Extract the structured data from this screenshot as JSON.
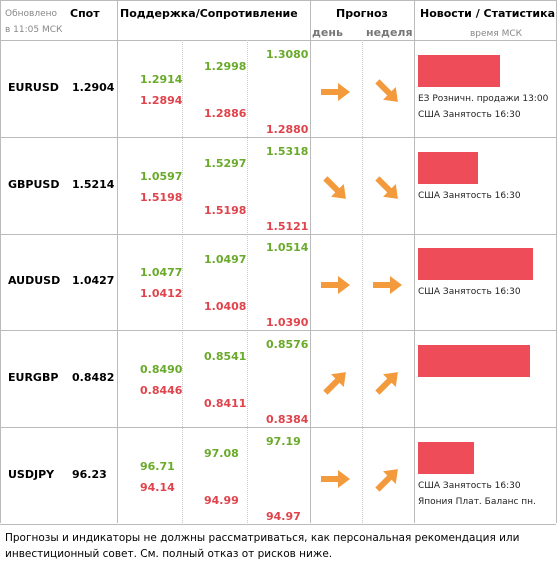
{
  "header": {
    "updated": "Обновлено",
    "updated_time": "в 11:05 МСК",
    "spot": "Спот",
    "levels": "Поддержка/Сопротивление",
    "forecast": "Прогноз",
    "day": "день",
    "week": "неделя",
    "news": "Новости / Статистика",
    "news_time": "время МСК"
  },
  "rows": [
    {
      "pair": "EURUSD",
      "spot": "1.2904",
      "levels": [
        [
          "1.2914",
          "1.2894"
        ],
        [
          "1.2998",
          "1.2886"
        ],
        [
          "1.3080",
          "1.2880"
        ]
      ],
      "news": [
        "ЕЗ Розничн. продажи 13:00",
        "США Занятость 16:30"
      ]
    },
    {
      "pair": "GBPUSD",
      "spot": "1.5214",
      "levels": [
        [
          "1.0597",
          "1.5198"
        ],
        [
          "1.5297",
          "1.5198"
        ],
        [
          "1.5318",
          "1.5121"
        ]
      ],
      "news": [
        "США Занятость 16:30"
      ]
    },
    {
      "pair": "AUDUSD",
      "spot": "1.0427",
      "levels": [
        [
          "1.0477",
          "1.0412"
        ],
        [
          "1.0497",
          "1.0408"
        ],
        [
          "1.0514",
          "1.0390"
        ]
      ],
      "news": [
        "США Занятость 16:30"
      ]
    },
    {
      "pair": "EURGBP",
      "spot": "0.8482",
      "levels": [
        [
          "0.8490",
          "0.8446"
        ],
        [
          "0.8541",
          "0.8411"
        ],
        [
          "0.8576",
          "0.8384"
        ]
      ],
      "news": []
    },
    {
      "pair": "USDJPY",
      "spot": "96.23",
      "levels": [
        [
          "96.71",
          "94.14"
        ],
        [
          "97.08",
          "94.99"
        ],
        [
          "97.19",
          "94.97"
        ]
      ],
      "news": [
        "США Занятость 16:30",
        "Япония Плат. Баланс пн."
      ]
    }
  ],
  "footer": "Прогнозы и индикаторы не должны рассматриваться, как персональная рекомендация или инвестиционный совет. См. полный отказ от рисков ниже."
}
